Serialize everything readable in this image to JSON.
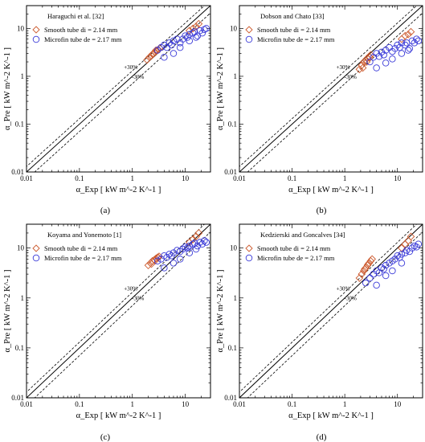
{
  "chart_data": [
    {
      "type": "scatter",
      "panel": "(a)",
      "reference": "Haraguchi et al. [32]",
      "xlabel": "α_Exp [ kW m^-2 K^-1 ]",
      "ylabel": "α_Pre [ kW m^-2 K^-1 ]",
      "scale": "log",
      "xlim": [
        0.01,
        30
      ],
      "ylim": [
        0.01,
        30
      ],
      "x_ticks": [
        "0.01",
        "0.1",
        "1",
        "10"
      ],
      "y_ticks": [
        "0.01",
        "0.1",
        "1",
        "10"
      ],
      "legend_position": "top-left",
      "reference_lines": {
        "equal": "y = x",
        "upper": "+30%",
        "lower": "-30%"
      },
      "series": [
        {
          "name": "Smooth tube di = 2.14 mm",
          "marker": "diamond",
          "color": "#cc5a2e",
          "x": [
            1.9,
            2.1,
            2.3,
            2.5,
            2.7,
            2.9,
            3.1,
            3.3,
            2.4,
            2.8,
            12,
            14,
            16,
            18
          ],
          "y": [
            2.2,
            2.5,
            2.7,
            3.0,
            3.2,
            3.4,
            3.6,
            3.9,
            2.9,
            3.5,
            9,
            10,
            11,
            12.5
          ]
        },
        {
          "name": "Microfin tube de = 2.17 mm",
          "marker": "circle",
          "color": "#3a3ad8",
          "x": [
            3,
            3.5,
            4,
            4.5,
            5,
            5.5,
            6,
            7,
            8,
            9,
            10,
            11,
            12,
            14,
            15,
            17,
            19,
            21,
            23,
            25,
            4,
            6,
            8,
            12,
            16
          ],
          "y": [
            3.5,
            4,
            4.5,
            4,
            5,
            4.5,
            5.5,
            6,
            5,
            6,
            7,
            6.5,
            7.5,
            8,
            8.5,
            7,
            9,
            8,
            9.5,
            10,
            2.5,
            3,
            4,
            5.5,
            6.5
          ]
        }
      ]
    },
    {
      "type": "scatter",
      "panel": "(b)",
      "reference": "Dobson and Chato [33]",
      "xlabel": "α_Exp [ kW m^-2 K^-1 ]",
      "ylabel": "α_Pre [ kW m^-2 K^-1 ]",
      "scale": "log",
      "xlim": [
        0.01,
        30
      ],
      "ylim": [
        0.01,
        30
      ],
      "x_ticks": [
        "0.01",
        "0.1",
        "1",
        "10"
      ],
      "y_ticks": [
        "0.01",
        "0.1",
        "1",
        "10"
      ],
      "legend_position": "top-left",
      "reference_lines": {
        "equal": "y = x",
        "upper": "+30%",
        "lower": "-30%"
      },
      "series": [
        {
          "name": "Smooth tube di = 2.14 mm",
          "marker": "diamond",
          "color": "#cc5a2e",
          "x": [
            1.9,
            2.1,
            2.3,
            2.5,
            2.7,
            2.9,
            3.1,
            2.2,
            2.6,
            3.0,
            12,
            14,
            16,
            18
          ],
          "y": [
            1.4,
            1.7,
            2.0,
            2.2,
            2.4,
            2.6,
            2.8,
            1.5,
            2.0,
            2.5,
            6,
            7,
            7.5,
            8.5
          ]
        },
        {
          "name": "Microfin tube de = 2.17 mm",
          "marker": "circle",
          "color": "#3a3ad8",
          "x": [
            3,
            3.5,
            4,
            4.5,
            5,
            5.5,
            6,
            7,
            8,
            9,
            10,
            11,
            12,
            14,
            15,
            17,
            19,
            21,
            23,
            25,
            4,
            6,
            8,
            12,
            16
          ],
          "y": [
            2.0,
            2.5,
            3.0,
            2.6,
            3.2,
            2.8,
            3.5,
            4.0,
            3.3,
            3.8,
            4.5,
            4.0,
            5.0,
            4.5,
            5.0,
            3.8,
            5.5,
            5.0,
            6.0,
            5.5,
            1.5,
            1.9,
            2.3,
            3.0,
            3.5
          ]
        }
      ]
    },
    {
      "type": "scatter",
      "panel": "(c)",
      "reference": "Koyama and Yonemoto [1]",
      "xlabel": "α_Exp [ kW m^-2 K^-1 ]",
      "ylabel": "α_Pre [ kW m^-2 K^-1 ]",
      "scale": "log",
      "xlim": [
        0.01,
        30
      ],
      "ylim": [
        0.01,
        30
      ],
      "x_ticks": [
        "0.01",
        "0.1",
        "1",
        "10"
      ],
      "y_ticks": [
        "0.01",
        "0.1",
        "1",
        "10"
      ],
      "legend_position": "top-left",
      "reference_lines": {
        "equal": "y = x",
        "upper": "+30%",
        "lower": "-30%"
      },
      "series": [
        {
          "name": "Smooth tube di = 2.14 mm",
          "marker": "diamond",
          "color": "#cc5a2e",
          "x": [
            2.0,
            2.2,
            2.4,
            2.6,
            2.8,
            3.0,
            3.2,
            2.3,
            2.7,
            3.1,
            12,
            14,
            16,
            18
          ],
          "y": [
            4.5,
            5.0,
            5.5,
            5.8,
            6.2,
            6.5,
            6.8,
            4.8,
            5.6,
            6.4,
            13,
            15,
            17,
            20
          ]
        },
        {
          "name": "Microfin tube de = 2.17 mm",
          "marker": "circle",
          "color": "#3a3ad8",
          "x": [
            3,
            3.5,
            4,
            4.5,
            5,
            5.5,
            6,
            7,
            8,
            9,
            10,
            11,
            12,
            14,
            15,
            17,
            19,
            21,
            23,
            25,
            4,
            6,
            8,
            12,
            16
          ],
          "y": [
            5.5,
            6.0,
            7.0,
            6.5,
            7.5,
            7.0,
            8.0,
            9.0,
            8.5,
            9.5,
            10.5,
            10.0,
            11.0,
            12.0,
            12.5,
            11.0,
            13.0,
            12.0,
            14.0,
            13.0,
            4.0,
            5.0,
            6.0,
            8.0,
            9.5
          ]
        }
      ]
    },
    {
      "type": "scatter",
      "panel": "(d)",
      "reference": "Kedzierski and Goncalves [34]",
      "xlabel": "α_Exp [ kW m^-2 K^-1 ]",
      "ylabel": "α_Pre [ kW m^-2 K^-1 ]",
      "scale": "log",
      "xlim": [
        0.01,
        30
      ],
      "ylim": [
        0.01,
        30
      ],
      "x_ticks": [
        "0.01",
        "0.1",
        "1",
        "10"
      ],
      "y_ticks": [
        "0.01",
        "0.1",
        "1",
        "10"
      ],
      "legend_position": "top-left",
      "reference_lines": {
        "equal": "y = x",
        "upper": "+30%",
        "lower": "-30%"
      },
      "series": [
        {
          "name": "Smooth tube di = 2.14 mm",
          "marker": "diamond",
          "color": "#cc5a2e",
          "x": [
            1.9,
            2.1,
            2.3,
            2.5,
            2.7,
            2.9,
            3.1,
            3.3,
            2.4,
            2.8,
            12,
            14,
            16,
            18
          ],
          "y": [
            2.5,
            3.0,
            3.5,
            4.0,
            4.5,
            5.0,
            5.5,
            6.0,
            3.8,
            4.8,
            10,
            12,
            14,
            17
          ]
        },
        {
          "name": "Microfin tube de = 2.17 mm",
          "marker": "circle",
          "color": "#3a3ad8",
          "x": [
            2.5,
            3,
            3.5,
            4,
            4.5,
            5,
            5.5,
            6,
            7,
            8,
            9,
            10,
            11,
            12,
            14,
            15,
            17,
            19,
            21,
            23,
            25,
            4,
            6,
            8,
            12
          ],
          "y": [
            2.0,
            2.5,
            3.0,
            3.5,
            3.2,
            4.0,
            3.8,
            4.5,
            5.0,
            5.5,
            6.0,
            7.0,
            6.5,
            7.5,
            8.0,
            9.0,
            8.5,
            10.0,
            11.0,
            10.5,
            12.0,
            1.8,
            2.8,
            3.5,
            5.0
          ]
        }
      ]
    }
  ]
}
